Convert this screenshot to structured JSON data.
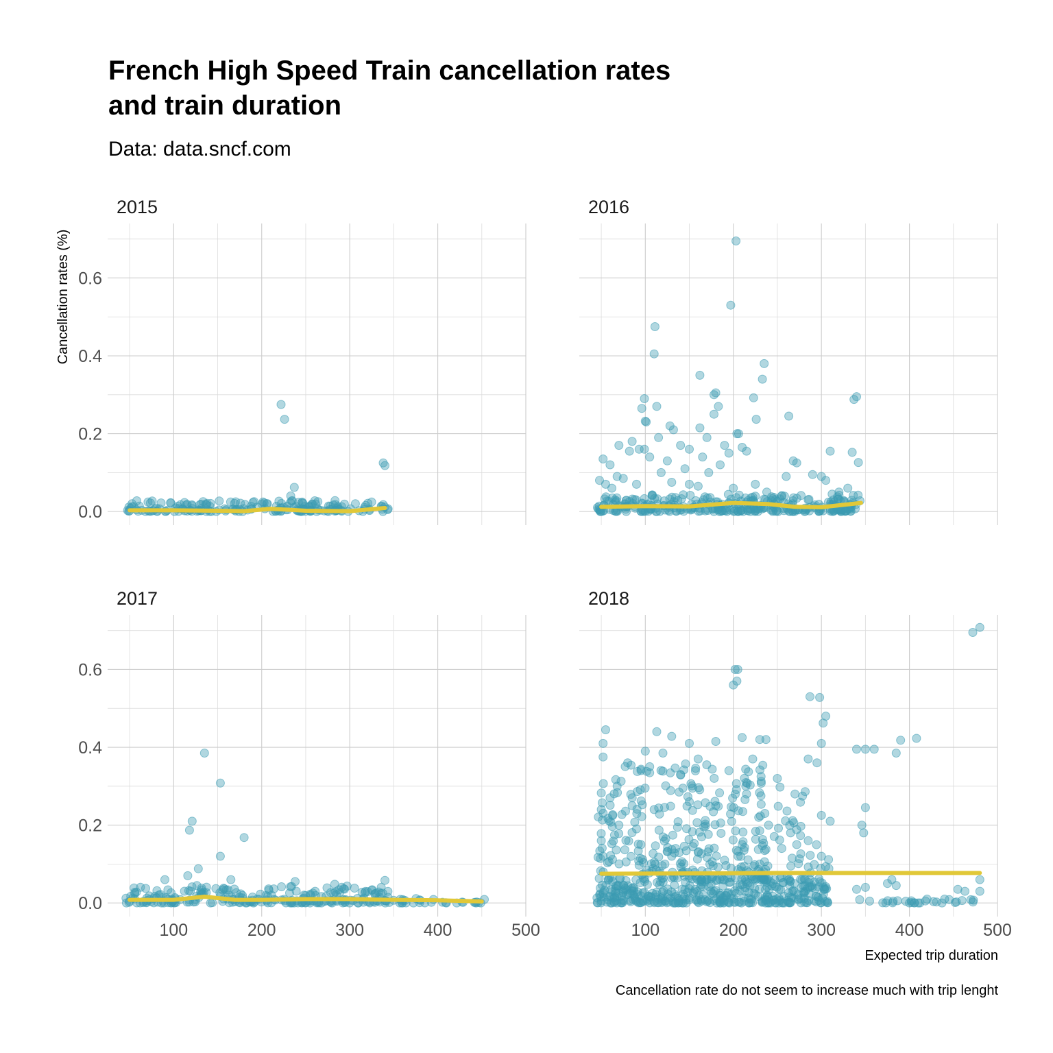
{
  "chart_data": {
    "type": "scatter",
    "title_line1": "French High Speed Train cancellation rates",
    "title_line2": "and train duration",
    "subtitle": "Data: data.sncf.com",
    "xlabel": "Expected trip duration",
    "ylabel": "Cancellation rates (%)",
    "caption": "Cancellation rate do not seem to increase much with trip lenght",
    "xlim": [
      25,
      500
    ],
    "ylim": [
      -0.035,
      0.74
    ],
    "x_ticks": [
      100,
      200,
      300,
      400,
      500
    ],
    "x_tick_labels": [
      "100",
      "200",
      "300",
      "400",
      "500"
    ],
    "y_ticks": [
      0.0,
      0.2,
      0.4,
      0.6
    ],
    "y_tick_labels": [
      "0.0",
      "0.2",
      "0.4",
      "0.6"
    ],
    "grid": true,
    "colors": {
      "points": "#3b9ab2",
      "smooth": "#e1c838"
    },
    "facets": [
      {
        "label": "2015",
        "outliers": [
          [
            222,
            0.275
          ],
          [
            226,
            0.237
          ],
          [
            237,
            0.062
          ],
          [
            233,
            0.04
          ],
          [
            338,
            0.125
          ],
          [
            340,
            0.118
          ]
        ],
        "cluster": [
          [
            45,
            345,
            0.0,
            0.028,
            200
          ]
        ],
        "smooth": [
          [
            50,
            0.003
          ],
          [
            100,
            0.003
          ],
          [
            150,
            0.002
          ],
          [
            180,
            0.001
          ],
          [
            210,
            0.007
          ],
          [
            235,
            0.004
          ],
          [
            250,
            0.002
          ],
          [
            300,
            0.001
          ],
          [
            340,
            0.009
          ]
        ]
      },
      {
        "label": "2016",
        "outliers": [
          [
            203,
            0.695
          ],
          [
            197,
            0.53
          ],
          [
            111,
            0.475
          ],
          [
            110,
            0.405
          ],
          [
            235,
            0.38
          ],
          [
            162,
            0.35
          ],
          [
            233,
            0.34
          ],
          [
            180,
            0.305
          ],
          [
            178,
            0.3
          ],
          [
            340,
            0.295
          ],
          [
            337,
            0.288
          ],
          [
            223,
            0.292
          ],
          [
            99,
            0.29
          ],
          [
            96,
            0.265
          ],
          [
            113,
            0.27
          ],
          [
            183,
            0.27
          ],
          [
            100,
            0.232
          ],
          [
            101,
            0.23
          ],
          [
            226,
            0.237
          ],
          [
            263,
            0.245
          ],
          [
            128,
            0.22
          ],
          [
            132,
            0.21
          ],
          [
            162,
            0.215
          ],
          [
            178,
            0.25
          ],
          [
            204,
            0.2
          ],
          [
            206,
            0.2
          ],
          [
            170,
            0.19
          ],
          [
            85,
            0.18
          ],
          [
            93,
            0.16
          ],
          [
            99,
            0.16
          ],
          [
            115,
            0.19
          ],
          [
            140,
            0.17
          ],
          [
            150,
            0.16
          ],
          [
            190,
            0.17
          ],
          [
            195,
            0.15
          ],
          [
            210,
            0.165
          ],
          [
            215,
            0.155
          ],
          [
            310,
            0.155
          ],
          [
            335,
            0.152
          ],
          [
            52,
            0.135
          ],
          [
            60,
            0.12
          ],
          [
            70,
            0.17
          ],
          [
            82,
            0.155
          ],
          [
            105,
            0.14
          ],
          [
            125,
            0.13
          ],
          [
            165,
            0.14
          ],
          [
            172,
            0.1
          ],
          [
            185,
            0.12
          ],
          [
            268,
            0.13
          ],
          [
            272,
            0.125
          ],
          [
            300,
            0.09
          ],
          [
            305,
            0.08
          ],
          [
            342,
            0.126
          ],
          [
            118,
            0.1
          ],
          [
            145,
            0.11
          ],
          [
            260,
            0.09
          ],
          [
            290,
            0.095
          ],
          [
            48,
            0.08
          ],
          [
            55,
            0.07
          ],
          [
            62,
            0.06
          ],
          [
            68,
            0.09
          ],
          [
            75,
            0.085
          ],
          [
            90,
            0.07
          ],
          [
            130,
            0.075
          ],
          [
            150,
            0.07
          ],
          [
            160,
            0.065
          ],
          [
            238,
            0.05
          ],
          [
            320,
            0.05
          ],
          [
            330,
            0.06
          ],
          [
            200,
            0.06
          ],
          [
            225,
            0.07
          ]
        ],
        "cluster": [
          [
            45,
            345,
            0.0,
            0.045,
            320
          ]
        ],
        "smooth": [
          [
            50,
            0.012
          ],
          [
            100,
            0.014
          ],
          [
            150,
            0.013
          ],
          [
            200,
            0.022
          ],
          [
            240,
            0.019
          ],
          [
            270,
            0.012
          ],
          [
            300,
            0.011
          ],
          [
            345,
            0.022
          ]
        ]
      },
      {
        "label": "2017",
        "outliers": [
          [
            135,
            0.385
          ],
          [
            153,
            0.308
          ],
          [
            121,
            0.21
          ],
          [
            118,
            0.187
          ],
          [
            180,
            0.168
          ],
          [
            153,
            0.12
          ],
          [
            128,
            0.088
          ],
          [
            116,
            0.07
          ],
          [
            90,
            0.06
          ],
          [
            165,
            0.06
          ],
          [
            340,
            0.058
          ],
          [
            283,
            0.048
          ],
          [
            238,
            0.055
          ]
        ],
        "cluster": [
          [
            45,
            345,
            0.0,
            0.045,
            240
          ],
          [
            345,
            455,
            0.0,
            0.012,
            30
          ]
        ],
        "smooth": [
          [
            50,
            0.008
          ],
          [
            100,
            0.008
          ],
          [
            135,
            0.016
          ],
          [
            170,
            0.008
          ],
          [
            200,
            0.008
          ],
          [
            250,
            0.01
          ],
          [
            300,
            0.01
          ],
          [
            350,
            0.008
          ],
          [
            400,
            0.007
          ],
          [
            450,
            0.004
          ]
        ]
      },
      {
        "label": "2018",
        "outliers": [
          [
            205,
            0.6
          ],
          [
            202,
            0.6
          ],
          [
            204,
            0.57
          ],
          [
            200,
            0.56
          ],
          [
            298,
            0.528
          ],
          [
            287,
            0.53
          ],
          [
            305,
            0.48
          ],
          [
            302,
            0.462
          ],
          [
            55,
            0.445
          ],
          [
            113,
            0.44
          ],
          [
            52,
            0.41
          ],
          [
            130,
            0.428
          ],
          [
            472,
            0.695
          ],
          [
            480,
            0.708
          ],
          [
            408,
            0.423
          ],
          [
            390,
            0.418
          ],
          [
            385,
            0.385
          ],
          [
            340,
            0.395
          ],
          [
            350,
            0.395
          ],
          [
            360,
            0.395
          ],
          [
            300,
            0.41
          ],
          [
            295,
            0.36
          ],
          [
            237,
            0.42
          ],
          [
            230,
            0.42
          ],
          [
            210,
            0.425
          ],
          [
            180,
            0.415
          ],
          [
            150,
            0.41
          ],
          [
            100,
            0.39
          ],
          [
            120,
            0.385
          ],
          [
            250,
            0.32
          ],
          [
            285,
            0.37
          ],
          [
            160,
            0.37
          ],
          [
            140,
            0.33
          ],
          [
            80,
            0.36
          ],
          [
            105,
            0.35
          ],
          [
            195,
            0.34
          ],
          [
            222,
            0.37
          ],
          [
            52,
            0.375
          ],
          [
            350,
            0.245
          ],
          [
            346,
            0.2
          ],
          [
            348,
            0.18
          ],
          [
            310,
            0.21
          ],
          [
            300,
            0.225
          ],
          [
            270,
            0.28
          ],
          [
            265,
            0.18
          ],
          [
            272,
            0.15
          ],
          [
            240,
            0.2
          ],
          [
            215,
            0.28
          ],
          [
            180,
            0.25
          ],
          [
            150,
            0.26
          ],
          [
            110,
            0.24
          ],
          [
            85,
            0.25
          ],
          [
            60,
            0.27
          ],
          [
            50,
            0.24
          ],
          [
            50,
            0.16
          ],
          [
            52,
            0.12
          ],
          [
            70,
            0.2
          ],
          [
            95,
            0.15
          ],
          [
            130,
            0.12
          ],
          [
            160,
            0.13
          ],
          [
            190,
            0.11
          ],
          [
            210,
            0.15
          ],
          [
            230,
            0.1
          ],
          [
            255,
            0.14
          ],
          [
            285,
            0.16
          ],
          [
            300,
            0.12
          ],
          [
            380,
            0.06
          ],
          [
            385,
            0.045
          ],
          [
            375,
            0.05
          ],
          [
            480,
            0.06
          ],
          [
            480,
            0.03
          ],
          [
            463,
            0.03
          ],
          [
            455,
            0.035
          ],
          [
            440,
            0.01
          ],
          [
            420,
            0.01
          ],
          [
            400,
            0.0
          ],
          [
            410,
            0.0
          ],
          [
            350,
            0.04
          ],
          [
            340,
            0.035
          ]
        ],
        "cluster": [
          [
            45,
            310,
            0.0,
            0.06,
            360
          ],
          [
            45,
            240,
            0.06,
            0.36,
            300
          ],
          [
            240,
            310,
            0.06,
            0.3,
            40
          ],
          [
            340,
            480,
            0.0,
            0.01,
            25
          ]
        ],
        "smooth": [
          [
            50,
            0.075
          ],
          [
            150,
            0.076
          ],
          [
            250,
            0.077
          ],
          [
            350,
            0.077
          ],
          [
            480,
            0.077
          ]
        ]
      }
    ]
  }
}
